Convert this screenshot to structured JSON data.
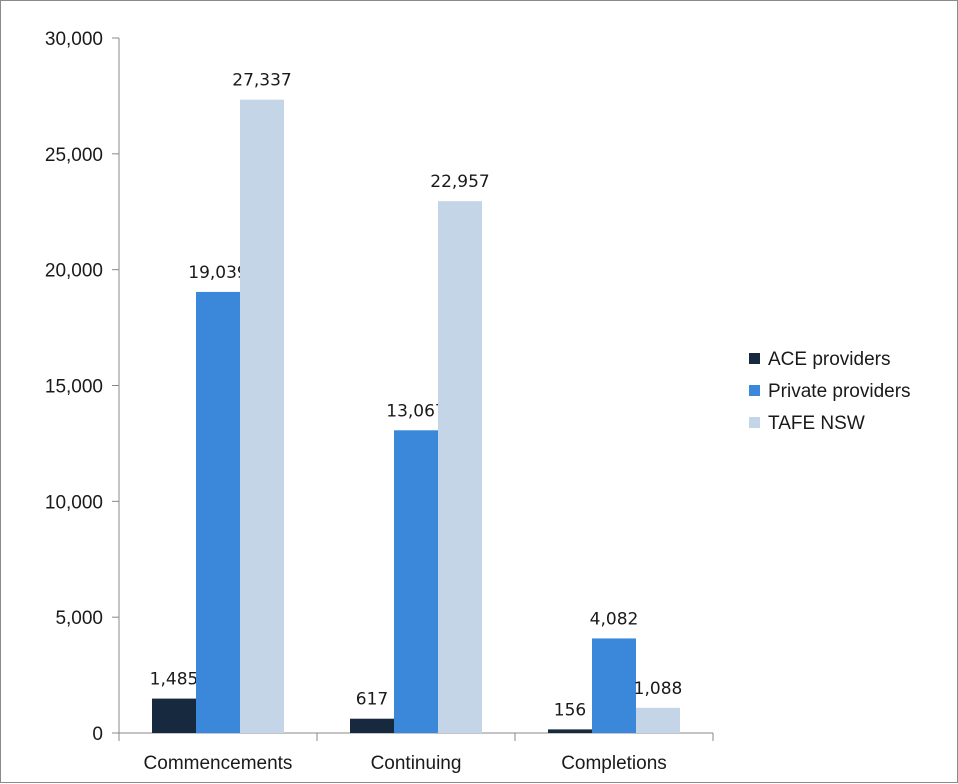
{
  "chart_data": {
    "type": "bar",
    "categories": [
      "Commencements",
      "Continuing",
      "Completions"
    ],
    "series": [
      {
        "name": "ACE providers",
        "values": [
          1485,
          617,
          156
        ],
        "labels": [
          "1,485",
          "617",
          "156"
        ],
        "color": "#17293f"
      },
      {
        "name": "Private providers",
        "values": [
          19039,
          13067,
          4082
        ],
        "labels": [
          "19,039",
          "13,067",
          "4,082"
        ],
        "color": "#3b87d9"
      },
      {
        "name": "TAFE NSW",
        "values": [
          27337,
          22957,
          1088
        ],
        "labels": [
          "27,337",
          "22,957",
          "1,088"
        ],
        "color": "#c5d5e8"
      }
    ],
    "y_ticks": [
      {
        "value": 0,
        "label": "0"
      },
      {
        "value": 5000,
        "label": "5,000"
      },
      {
        "value": 10000,
        "label": "10,000"
      },
      {
        "value": 15000,
        "label": "15,000"
      },
      {
        "value": 20000,
        "label": "20,000"
      },
      {
        "value": 25000,
        "label": "25,000"
      },
      {
        "value": 30000,
        "label": "30,000"
      }
    ],
    "ylim": [
      0,
      30000
    ],
    "grid": false,
    "legend_position": "right"
  }
}
